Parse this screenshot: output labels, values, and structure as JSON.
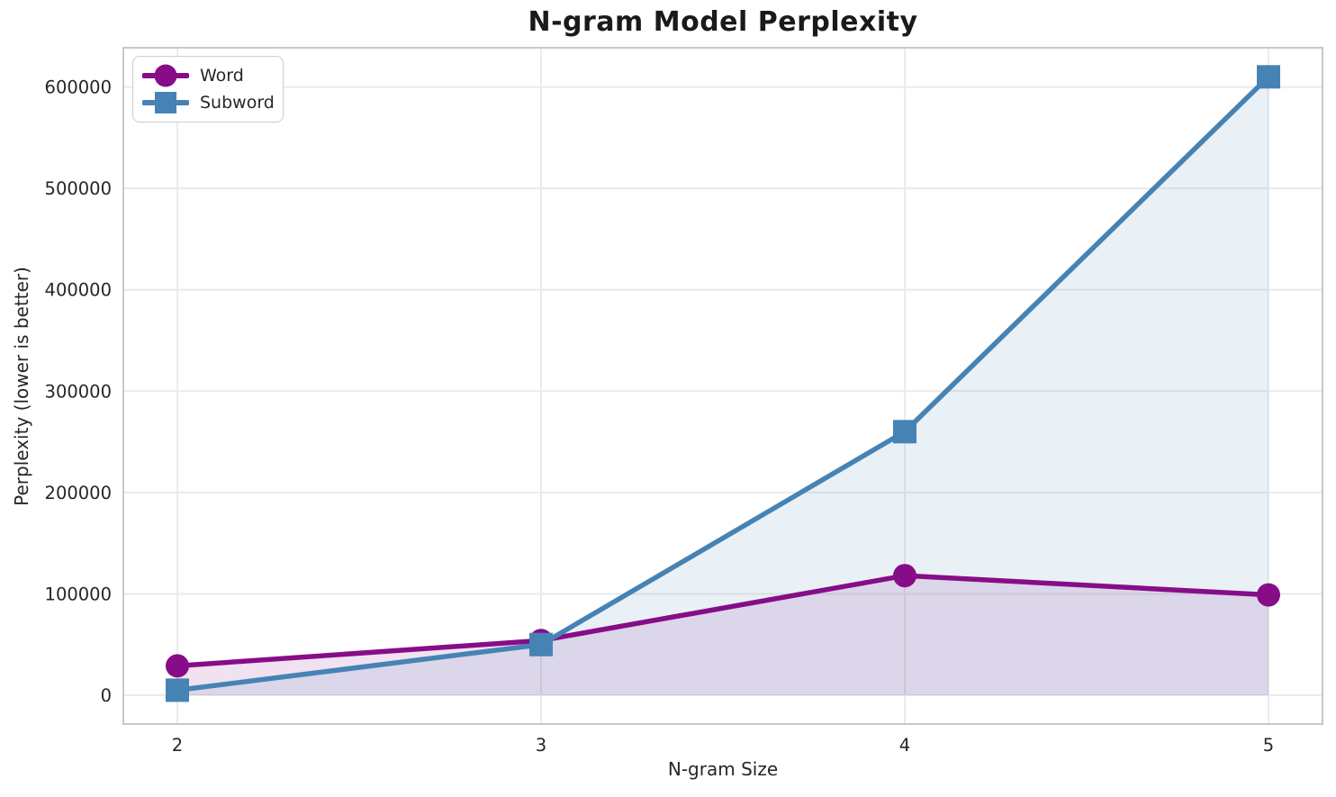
{
  "chart_data": {
    "type": "line",
    "title": "N-gram Model Perplexity",
    "xlabel": "N-gram Size",
    "ylabel": "Perplexity (lower is better)",
    "x": [
      2,
      3,
      4,
      5
    ],
    "series": [
      {
        "name": "Word",
        "values": [
          29000,
          54000,
          118000,
          99000
        ],
        "color": "#870D88",
        "marker": "circle",
        "fill_opacity": 0.12
      },
      {
        "name": "Subword",
        "values": [
          5000,
          50000,
          260000,
          610000
        ],
        "color": "#4683B4",
        "marker": "square",
        "fill_opacity": 0.12
      }
    ],
    "xticks": [
      2,
      3,
      4,
      5
    ],
    "xtick_labels": [
      "2",
      "3",
      "4",
      "5"
    ],
    "yticks": [
      0,
      100000,
      200000,
      300000,
      400000,
      500000,
      600000
    ],
    "ytick_labels": [
      "0",
      "100000",
      "200000",
      "300000",
      "400000",
      "500000",
      "600000"
    ],
    "xlim": [
      1.8515,
      5.1485
    ],
    "ylim": [
      -28400,
      638700
    ],
    "grid": true,
    "area_fill": true,
    "baseline": 0,
    "legend_position": "upper left",
    "legend_labels": [
      "Word",
      "Subword"
    ]
  },
  "style": {
    "grid_color": "#ebebeb",
    "frame_color": "#c8c8c8",
    "tick_color": "#262626",
    "background": "#ffffff"
  }
}
